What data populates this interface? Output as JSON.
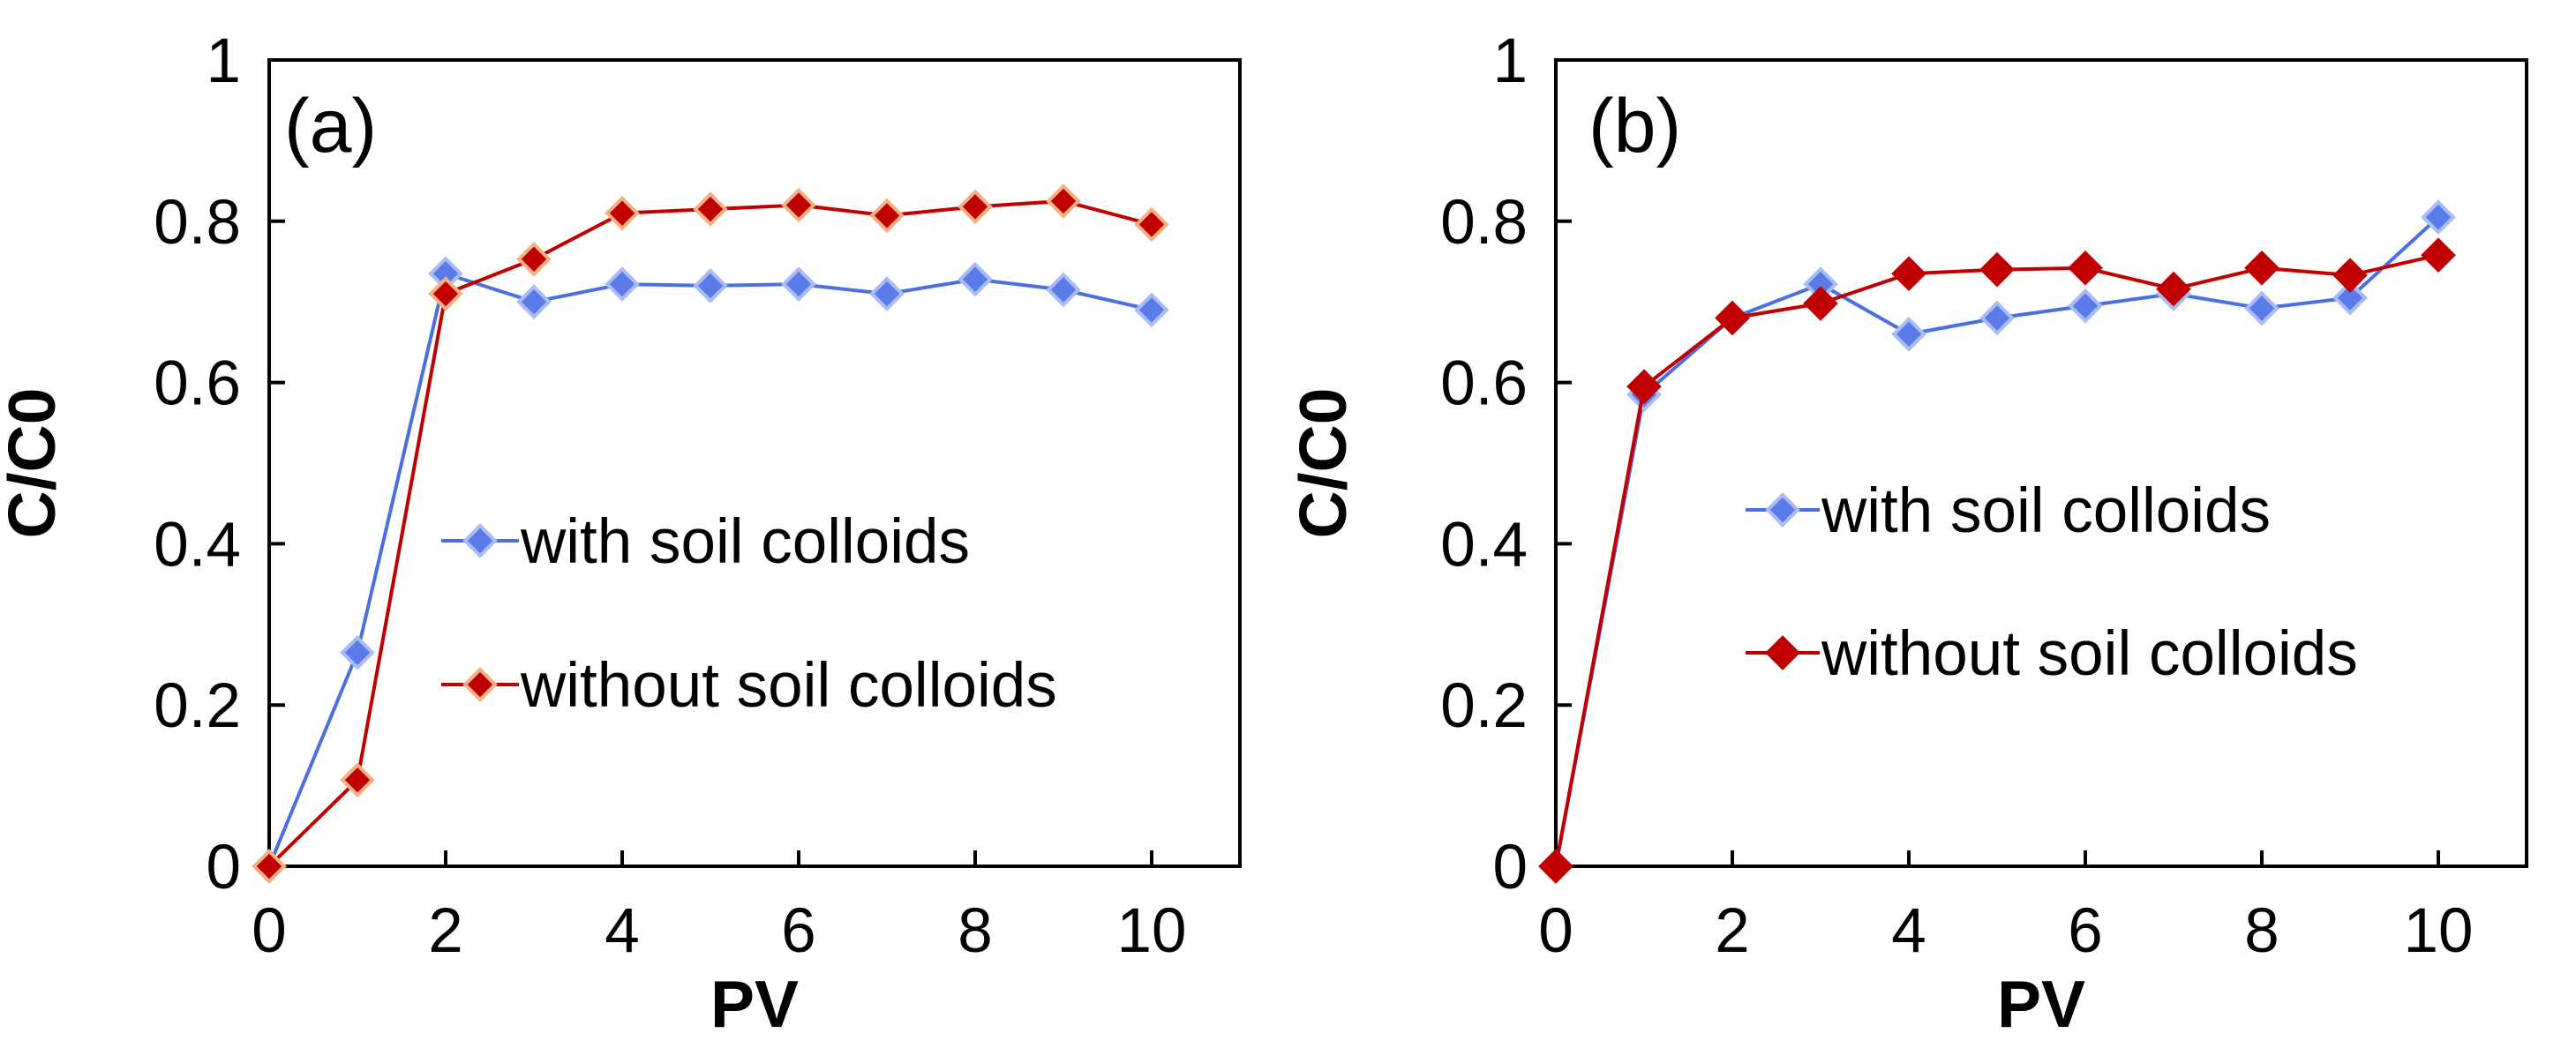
{
  "chart_data": [
    {
      "type": "line",
      "panel_label": "(a)",
      "xlabel": "PV",
      "ylabel": "C/C0",
      "xlim": [
        0,
        11
      ],
      "ylim": [
        0,
        1
      ],
      "xticks": [
        0,
        2,
        4,
        6,
        8,
        10
      ],
      "yticks": [
        0,
        0.2,
        0.4,
        0.6,
        0.8,
        1
      ],
      "ytick_labels": [
        "0",
        "0.2",
        "0.4",
        "0.6",
        "0.8",
        "1"
      ],
      "legend_placement": "center-right",
      "x": [
        0,
        1,
        2,
        3,
        4,
        5,
        6,
        7,
        8,
        9,
        10
      ],
      "series": [
        {
          "name": "with soil colloids",
          "color": "#4A6FE3",
          "marker": "diamond",
          "marker_fill": "#5B7BE8",
          "marker_edge": "#A9BCF5",
          "values": [
            0,
            0.265,
            0.735,
            0.7,
            0.722,
            0.72,
            0.722,
            0.71,
            0.728,
            0.715,
            0.69
          ]
        },
        {
          "name": "without soil colloids",
          "color": "#C00000",
          "marker": "diamond",
          "marker_fill": "#C00000",
          "marker_edge": "#F4B183",
          "values": [
            0,
            0.107,
            0.71,
            0.753,
            0.81,
            0.815,
            0.82,
            0.807,
            0.818,
            0.825,
            0.796
          ]
        }
      ]
    },
    {
      "type": "line",
      "panel_label": "(b)",
      "xlabel": "PV",
      "ylabel": "C/C0",
      "xlim": [
        0,
        11
      ],
      "ylim": [
        0,
        1
      ],
      "xticks": [
        0,
        2,
        4,
        6,
        8,
        10
      ],
      "yticks": [
        0,
        0.2,
        0.4,
        0.6,
        0.8,
        1
      ],
      "ytick_labels": [
        "0",
        "0.2",
        "0.4",
        "0.6",
        "0.8",
        "1"
      ],
      "legend_placement": "center-right",
      "x": [
        0,
        1,
        2,
        3,
        4,
        5,
        6,
        7,
        8,
        9,
        10
      ],
      "series": [
        {
          "name": "with soil colloids",
          "color": "#4A6FE3",
          "marker": "diamond",
          "marker_fill": "#5B7BE8",
          "marker_edge": "#A9BCF5",
          "values": [
            0,
            0.585,
            0.68,
            0.722,
            0.66,
            0.68,
            0.695,
            0.71,
            0.692,
            0.705,
            0.805
          ]
        },
        {
          "name": "without soil colloids",
          "color": "#C00000",
          "marker": "diamond",
          "marker_fill": "#C00000",
          "marker_edge": "#C00000",
          "values": [
            0,
            0.595,
            0.68,
            0.698,
            0.735,
            0.74,
            0.742,
            0.716,
            0.742,
            0.733,
            0.758
          ]
        }
      ]
    }
  ]
}
